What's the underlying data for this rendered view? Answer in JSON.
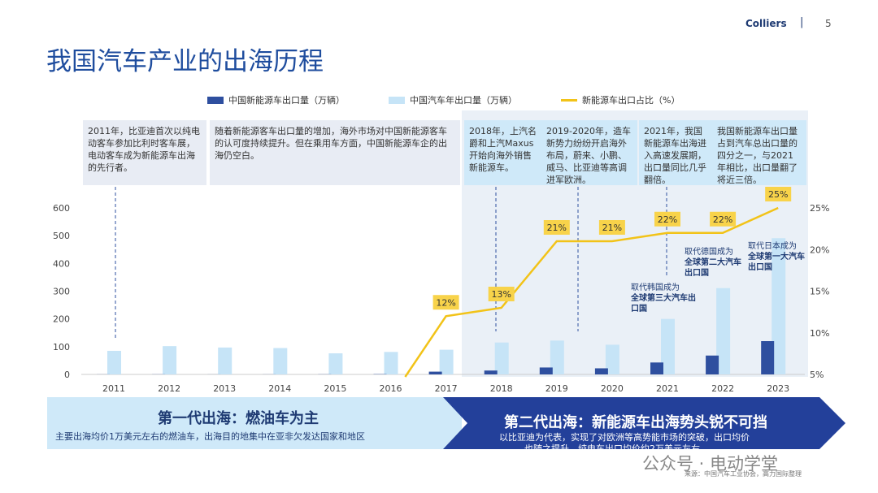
{
  "header": {
    "brand": "Colliers",
    "separator": "|",
    "page_number": "5"
  },
  "title": "我国汽车产业的出海历程",
  "colors": {
    "ev_bar": "#2e4f9f",
    "total_bar": "#c6e4f7",
    "ratio_line": "#f2c318",
    "label_bg": "#f8d34a",
    "shade": "#eaf0f7",
    "gen1_bg": "#cfe9f9",
    "gen2_bg": "#23409a",
    "title_blue": "#1f4d9e"
  },
  "chart_data": {
    "type": "bar+line",
    "legend": [
      "中国新能源车出口量（万辆）",
      "中国汽车年出口量（万辆）",
      "新能源车出口占比（%）"
    ],
    "categories": [
      "2011",
      "2012",
      "2013",
      "2014",
      "2015",
      "2016",
      "2017",
      "2018",
      "2019",
      "2020",
      "2021",
      "2022",
      "2023"
    ],
    "y_ticks": [
      "0",
      "100",
      "200",
      "300",
      "400",
      "500",
      "600"
    ],
    "y2_ticks": [
      "5%",
      "10%",
      "15%",
      "20%",
      "25%"
    ],
    "ylim": [
      0,
      600
    ],
    "y2lim": [
      5,
      25
    ],
    "series": [
      {
        "name": "中国新能源车出口量（万辆）",
        "values": [
          0.3,
          0.4,
          0.2,
          0.3,
          0.5,
          1,
          10,
          14,
          25,
          22,
          43,
          68,
          120
        ]
      },
      {
        "name": "中国汽车年出口量（万辆）",
        "values": [
          85,
          102,
          97,
          95,
          76,
          81,
          89,
          115,
          122,
          107,
          200,
          311,
          491
        ]
      },
      {
        "name": "新能源车出口占比（%）",
        "values": [
          null,
          null,
          null,
          null,
          null,
          2.5,
          12,
          13,
          21,
          21,
          22,
          22,
          25
        ],
        "labels": [
          "",
          "",
          "",
          "",
          "",
          "",
          "12%",
          "13%",
          "21%",
          "21%",
          "22%",
          "22%",
          "25%"
        ]
      }
    ]
  },
  "notes": [
    "2011年，比亚迪首次以纯电动客车参加比利时客车展，电动客车成为新能源车出海的先行者。",
    "随着新能源客车出口量的增加，海外市场对中国新能源客车的认可度持续提升。但在乘用车方面，中国新能源车企的出海仍空白。",
    "2018年，上汽名爵和上汽Maxus开始向海外销售新能源车。",
    "2019-2020年，造车新势力纷纷开启海外布局，蔚来、小鹏、威马、比亚迪等高调进军欧洲。",
    "2021年，我国新能源车出海进入高速发展期，出口量同比几乎翻倍。",
    "我国新能源车出口量占到汽车总出口量的四分之一，与2021年相比，出口量翻了将近三倍。"
  ],
  "annotations": [
    {
      "pre": "取代韩国成为",
      "bold": "全球第三大汽车出口国"
    },
    {
      "pre": "取代德国成为",
      "bold": "全球第二大汽车出口国"
    },
    {
      "pre": "取代日本成为",
      "bold": "全球第一大汽车出口国"
    }
  ],
  "gen1": {
    "title": "第一代出海：燃油车为主",
    "desc": "主要出海均价1万美元左右的燃油车，出海目的地集中在亚非欠发达国家和地区"
  },
  "gen2": {
    "title": "第二代出海：新能源车出海势头锐不可挡",
    "desc1": "以比亚迪为代表，实现了对欧洲等高势能市场的突破，出口均价",
    "desc2": "也随之提升，纯电车出口均价约2万美元左右"
  },
  "watermark": "公众号 · 电动学堂",
  "source": "来源：中国汽车工业协会，高力国际整理"
}
